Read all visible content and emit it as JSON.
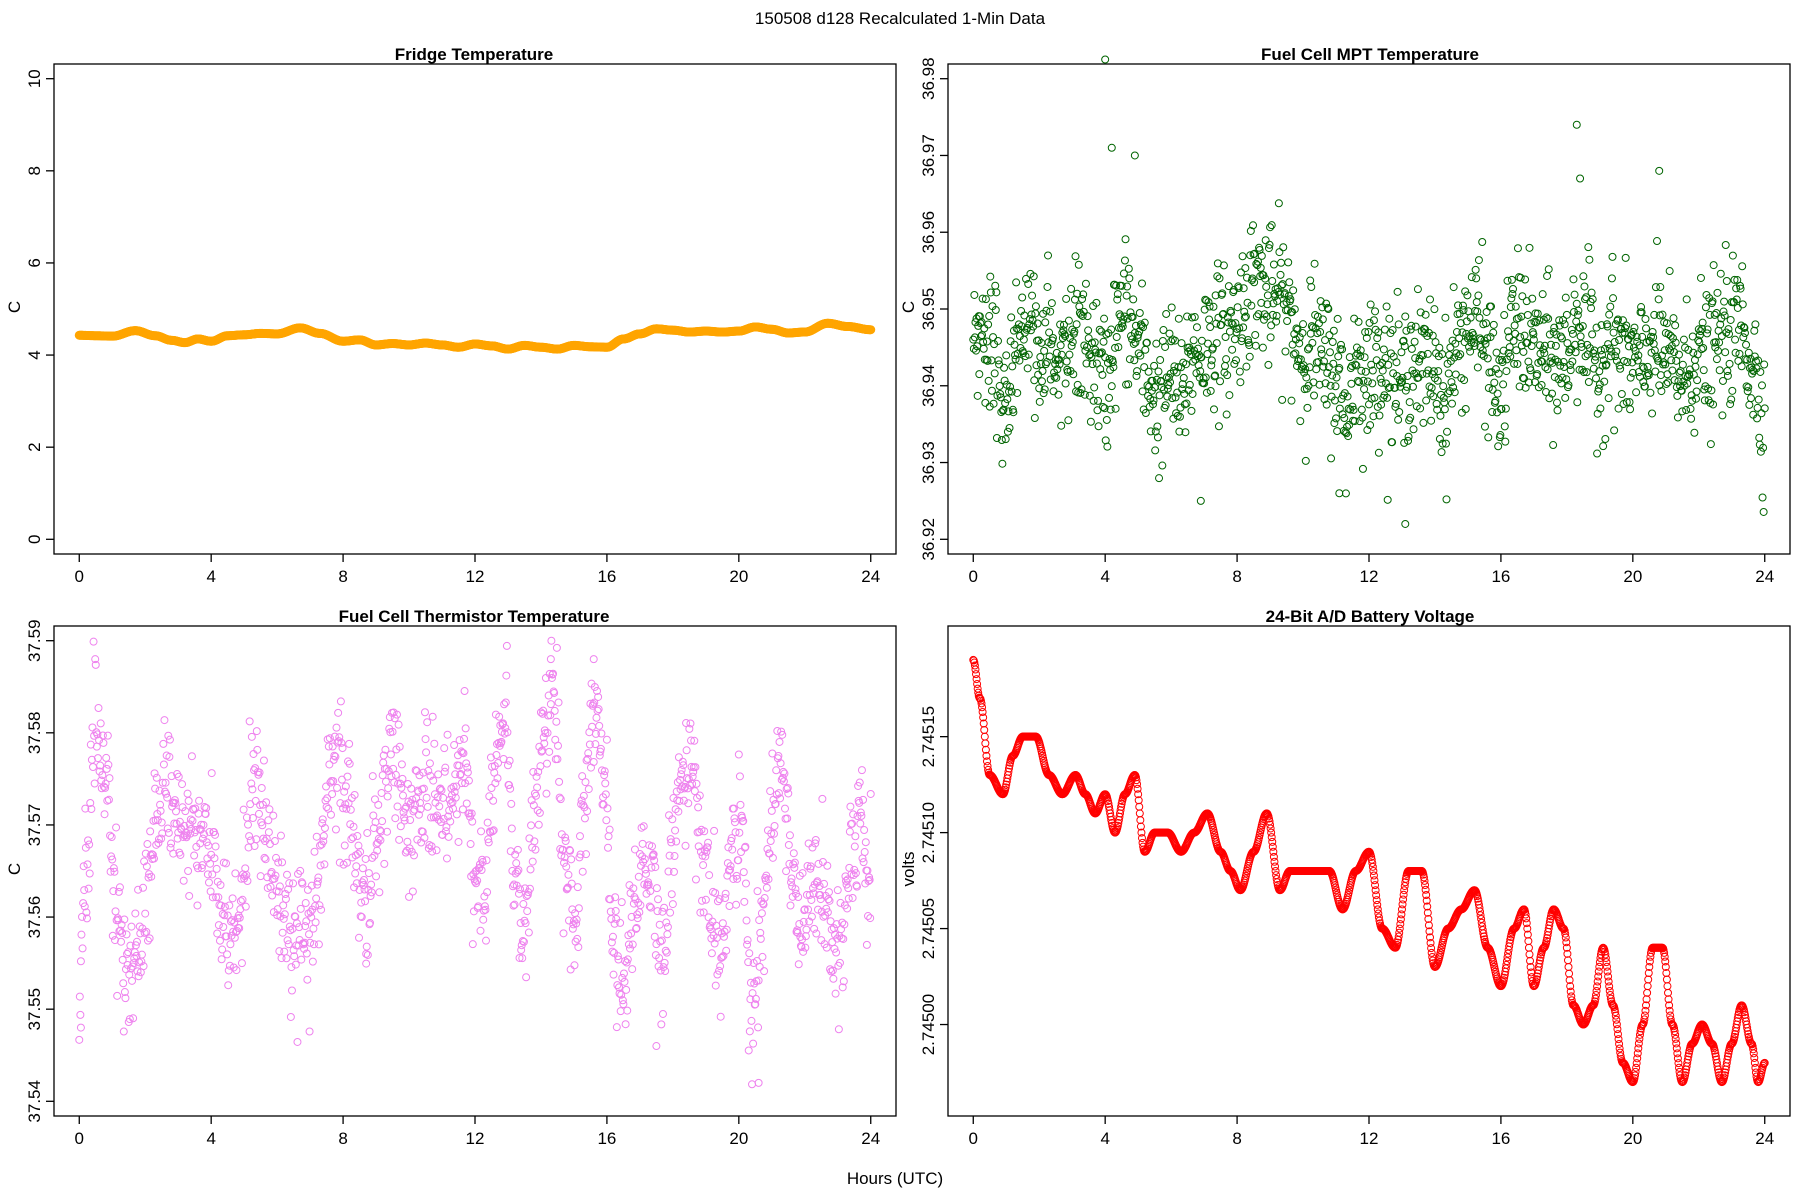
{
  "figure": {
    "title": "150508   d128   Recalculated 1-Min Data",
    "xlabel": "Hours (UTC)"
  },
  "chart_data": [
    {
      "type": "scatter",
      "title": "Fridge Temperature",
      "xlabel": "",
      "ylabel": "C",
      "color": "#ffa500",
      "marker": "filled",
      "xlim": [
        0,
        24
      ],
      "ylim": [
        0,
        10
      ],
      "xticks": [
        0,
        4,
        8,
        12,
        16,
        20,
        24
      ],
      "yticks": [
        0,
        2,
        4,
        6,
        8,
        10
      ],
      "ytick_labels": [
        "0",
        "2",
        "4",
        "6",
        "8",
        "10"
      ],
      "x": [
        0,
        0.5,
        1.0,
        1.7,
        2.3,
        2.8,
        3.2,
        3.6,
        4.0,
        4.5,
        5.0,
        5.5,
        6.0,
        6.7,
        7.3,
        8.0,
        8.5,
        9.0,
        9.5,
        10.0,
        10.5,
        11.0,
        11.5,
        12.0,
        12.5,
        13.0,
        13.5,
        14.0,
        14.5,
        15.0,
        15.5,
        16.0,
        16.5,
        17.0,
        17.5,
        18.0,
        18.5,
        19.0,
        19.5,
        20.0,
        20.5,
        21.0,
        21.5,
        22.0,
        22.7,
        23.3,
        24.0
      ],
      "y": [
        4.43,
        4.42,
        4.41,
        4.53,
        4.42,
        4.32,
        4.27,
        4.35,
        4.3,
        4.42,
        4.44,
        4.47,
        4.46,
        4.59,
        4.47,
        4.3,
        4.33,
        4.22,
        4.25,
        4.22,
        4.26,
        4.22,
        4.17,
        4.24,
        4.2,
        4.13,
        4.21,
        4.17,
        4.13,
        4.21,
        4.18,
        4.17,
        4.35,
        4.46,
        4.57,
        4.54,
        4.5,
        4.52,
        4.5,
        4.52,
        4.61,
        4.56,
        4.48,
        4.5,
        4.69,
        4.62,
        4.55
      ]
    },
    {
      "type": "scatter",
      "title": "Fuel Cell MPT Temperature",
      "xlabel": "",
      "ylabel": "C",
      "color": "#006400",
      "marker": "open-circle",
      "xlim": [
        0,
        24
      ],
      "ylim": [
        36.92,
        36.98
      ],
      "xticks": [
        0,
        4,
        8,
        12,
        16,
        20,
        24
      ],
      "yticks": [
        36.92,
        36.93,
        36.94,
        36.95,
        36.96,
        36.97,
        36.98
      ],
      "ytick_labels": [
        "36.92",
        "36.93",
        "36.94",
        "36.95",
        "36.96",
        "36.97",
        "36.98"
      ],
      "x": [
        0,
        0.3,
        0.6,
        1.0,
        1.3,
        1.6,
        2.0,
        2.3,
        2.6,
        3.0,
        3.3,
        3.6,
        4.0,
        4.3,
        4.6,
        5.0,
        5.3,
        5.6,
        6.0,
        6.3,
        6.6,
        7.0,
        7.3,
        7.6,
        8.0,
        8.3,
        8.6,
        9.0,
        9.3,
        9.6,
        10.0,
        10.3,
        10.6,
        11.0,
        11.3,
        11.6,
        12.0,
        12.3,
        12.6,
        13.0,
        13.3,
        13.6,
        14.0,
        14.3,
        14.6,
        15.0,
        15.3,
        15.6,
        16.0,
        16.3,
        16.6,
        17.0,
        17.3,
        17.6,
        18.0,
        18.3,
        18.6,
        19.0,
        19.3,
        19.6,
        20.0,
        20.3,
        20.6,
        21.0,
        21.3,
        21.6,
        22.0,
        22.3,
        22.6,
        23.0,
        23.3,
        23.6,
        24.0
      ],
      "y": [
        36.948,
        36.946,
        36.944,
        36.938,
        36.945,
        36.948,
        36.946,
        36.947,
        36.942,
        36.945,
        36.946,
        36.944,
        36.94,
        36.947,
        36.95,
        36.945,
        36.941,
        36.938,
        36.942,
        36.938,
        36.944,
        36.945,
        36.947,
        36.946,
        36.948,
        36.952,
        36.954,
        36.951,
        36.952,
        36.949,
        36.944,
        36.946,
        36.943,
        36.942,
        36.936,
        36.943,
        36.941,
        36.944,
        36.942,
        36.94,
        36.944,
        36.942,
        36.943,
        36.938,
        36.944,
        36.948,
        36.948,
        36.944,
        36.938,
        36.947,
        36.948,
        36.945,
        36.944,
        36.943,
        36.944,
        36.949,
        36.946,
        36.942,
        36.947,
        36.944,
        36.943,
        36.942,
        36.946,
        36.944,
        36.942,
        36.941,
        36.945,
        36.943,
        36.946,
        36.947,
        36.948,
        36.943,
        36.937
      ],
      "scatter_sd": 0.0045,
      "points_per_hour": 60,
      "annotations": [
        {
          "x": 4.0,
          "y": 36.9825
        },
        {
          "x": 4.2,
          "y": 36.971
        },
        {
          "x": 4.9,
          "y": 36.97
        },
        {
          "x": 18.3,
          "y": 36.974
        },
        {
          "x": 18.4,
          "y": 36.967
        },
        {
          "x": 20.8,
          "y": 36.968
        },
        {
          "x": 13.1,
          "y": 36.922
        },
        {
          "x": 6.9,
          "y": 36.925
        },
        {
          "x": 11.1,
          "y": 36.926
        }
      ]
    },
    {
      "type": "scatter",
      "title": "Fuel Cell Thermistor Temperature",
      "xlabel": "",
      "ylabel": "C",
      "color": "#ee82ee",
      "marker": "open-circle",
      "xlim": [
        0,
        24
      ],
      "ylim": [
        37.54,
        37.59
      ],
      "xticks": [
        0,
        4,
        8,
        12,
        16,
        20,
        24
      ],
      "yticks": [
        37.54,
        37.55,
        37.56,
        37.57,
        37.58,
        37.59
      ],
      "ytick_labels": [
        "37.54",
        "37.55",
        "37.56",
        "37.57",
        "37.58",
        "37.59"
      ],
      "x": [
        0,
        0.2,
        0.5,
        0.8,
        1.1,
        1.4,
        1.7,
        2.0,
        2.3,
        2.6,
        3.0,
        3.3,
        3.6,
        4.0,
        4.3,
        4.6,
        4.9,
        5.2,
        5.5,
        5.8,
        6.1,
        6.4,
        6.7,
        7.0,
        7.3,
        7.6,
        7.8,
        8.1,
        8.4,
        8.7,
        9.0,
        9.3,
        9.6,
        9.9,
        10.2,
        10.5,
        10.8,
        11.1,
        11.4,
        11.7,
        12.0,
        12.3,
        12.6,
        12.9,
        13.2,
        13.5,
        13.8,
        14.1,
        14.4,
        14.7,
        15.0,
        15.3,
        15.6,
        15.9,
        16.2,
        16.5,
        16.8,
        17.1,
        17.4,
        17.7,
        18.0,
        18.3,
        18.6,
        18.9,
        19.2,
        19.5,
        19.8,
        20.1,
        20.4,
        20.7,
        21.0,
        21.3,
        21.6,
        21.9,
        22.2,
        22.5,
        22.8,
        23.1,
        23.4,
        23.7,
        24.0
      ],
      "y": [
        37.553,
        37.566,
        37.581,
        37.575,
        37.562,
        37.553,
        37.556,
        37.562,
        37.57,
        37.574,
        37.569,
        37.57,
        37.568,
        37.568,
        37.562,
        37.557,
        37.56,
        37.572,
        37.574,
        37.566,
        37.561,
        37.559,
        37.558,
        37.558,
        37.564,
        37.575,
        37.578,
        37.572,
        37.566,
        37.561,
        37.568,
        37.576,
        37.577,
        37.571,
        37.571,
        37.573,
        37.572,
        37.573,
        37.575,
        37.576,
        37.566,
        37.563,
        37.577,
        37.583,
        37.565,
        37.558,
        37.571,
        37.581,
        37.584,
        37.566,
        37.558,
        37.57,
        37.583,
        37.577,
        37.558,
        37.553,
        37.56,
        37.568,
        37.562,
        37.554,
        37.568,
        37.574,
        37.577,
        37.567,
        37.56,
        37.556,
        37.568,
        37.57,
        37.548,
        37.558,
        37.571,
        37.578,
        37.566,
        37.558,
        37.563,
        37.563,
        37.557,
        37.557,
        37.566,
        37.57,
        37.565
      ],
      "scatter_sd": 0.0035,
      "points_per_hour": 60,
      "annotations": [
        {
          "x": 14.3,
          "y": 37.588
        },
        {
          "x": 15.6,
          "y": 37.588
        },
        {
          "x": 20.6,
          "y": 37.542
        },
        {
          "x": 0.05,
          "y": 37.548
        },
        {
          "x": 8.7,
          "y": 37.556
        },
        {
          "x": 17.5,
          "y": 37.546
        }
      ]
    },
    {
      "type": "scatter",
      "title": "24-Bit A/D Battery Voltage",
      "xlabel": "",
      "ylabel": "volts",
      "color": "#ff0000",
      "marker": "open-circle",
      "xlim": [
        0,
        24
      ],
      "ylim": [
        2.74496,
        2.7452
      ],
      "xticks": [
        0,
        4,
        8,
        12,
        16,
        20,
        24
      ],
      "yticks": [
        2.745,
        2.74505,
        2.7451,
        2.74515
      ],
      "ytick_labels": [
        "2.74500",
        "2.74505",
        "2.74510",
        "2.74515"
      ],
      "x": [
        0,
        0.2,
        0.5,
        0.9,
        1.2,
        1.5,
        1.9,
        2.3,
        2.7,
        3.1,
        3.4,
        3.7,
        4.0,
        4.3,
        4.6,
        4.9,
        5.2,
        5.5,
        5.9,
        6.3,
        6.7,
        7.1,
        7.5,
        7.8,
        8.1,
        8.5,
        8.9,
        9.3,
        9.6,
        10.0,
        10.4,
        10.8,
        11.2,
        11.6,
        12.0,
        12.4,
        12.8,
        13.2,
        13.6,
        14.0,
        14.4,
        14.8,
        15.2,
        15.6,
        16.0,
        16.4,
        16.7,
        17.0,
        17.3,
        17.6,
        17.9,
        18.2,
        18.5,
        18.8,
        19.1,
        19.4,
        19.7,
        20.0,
        20.3,
        20.6,
        20.9,
        21.2,
        21.5,
        21.8,
        22.1,
        22.4,
        22.7,
        23.0,
        23.3,
        23.6,
        23.8,
        24.0
      ],
      "y": [
        2.74519,
        2.74517,
        2.74513,
        2.74512,
        2.74514,
        2.74515,
        2.74515,
        2.74513,
        2.74512,
        2.74513,
        2.74512,
        2.74511,
        2.74512,
        2.7451,
        2.74512,
        2.74513,
        2.74509,
        2.7451,
        2.7451,
        2.74509,
        2.7451,
        2.74511,
        2.74509,
        2.74508,
        2.74507,
        2.74509,
        2.74511,
        2.74507,
        2.74508,
        2.74508,
        2.74508,
        2.74508,
        2.74506,
        2.74508,
        2.74509,
        2.74505,
        2.74504,
        2.74508,
        2.74508,
        2.74503,
        2.74505,
        2.74506,
        2.74507,
        2.74504,
        2.74502,
        2.74505,
        2.74506,
        2.74502,
        2.74504,
        2.74506,
        2.74505,
        2.74501,
        2.745,
        2.74501,
        2.74504,
        2.74501,
        2.74498,
        2.74497,
        2.745,
        2.74504,
        2.74504,
        2.745,
        2.74497,
        2.74499,
        2.745,
        2.74499,
        2.74497,
        2.74499,
        2.74501,
        2.74499,
        2.74497,
        2.74498
      ]
    }
  ]
}
